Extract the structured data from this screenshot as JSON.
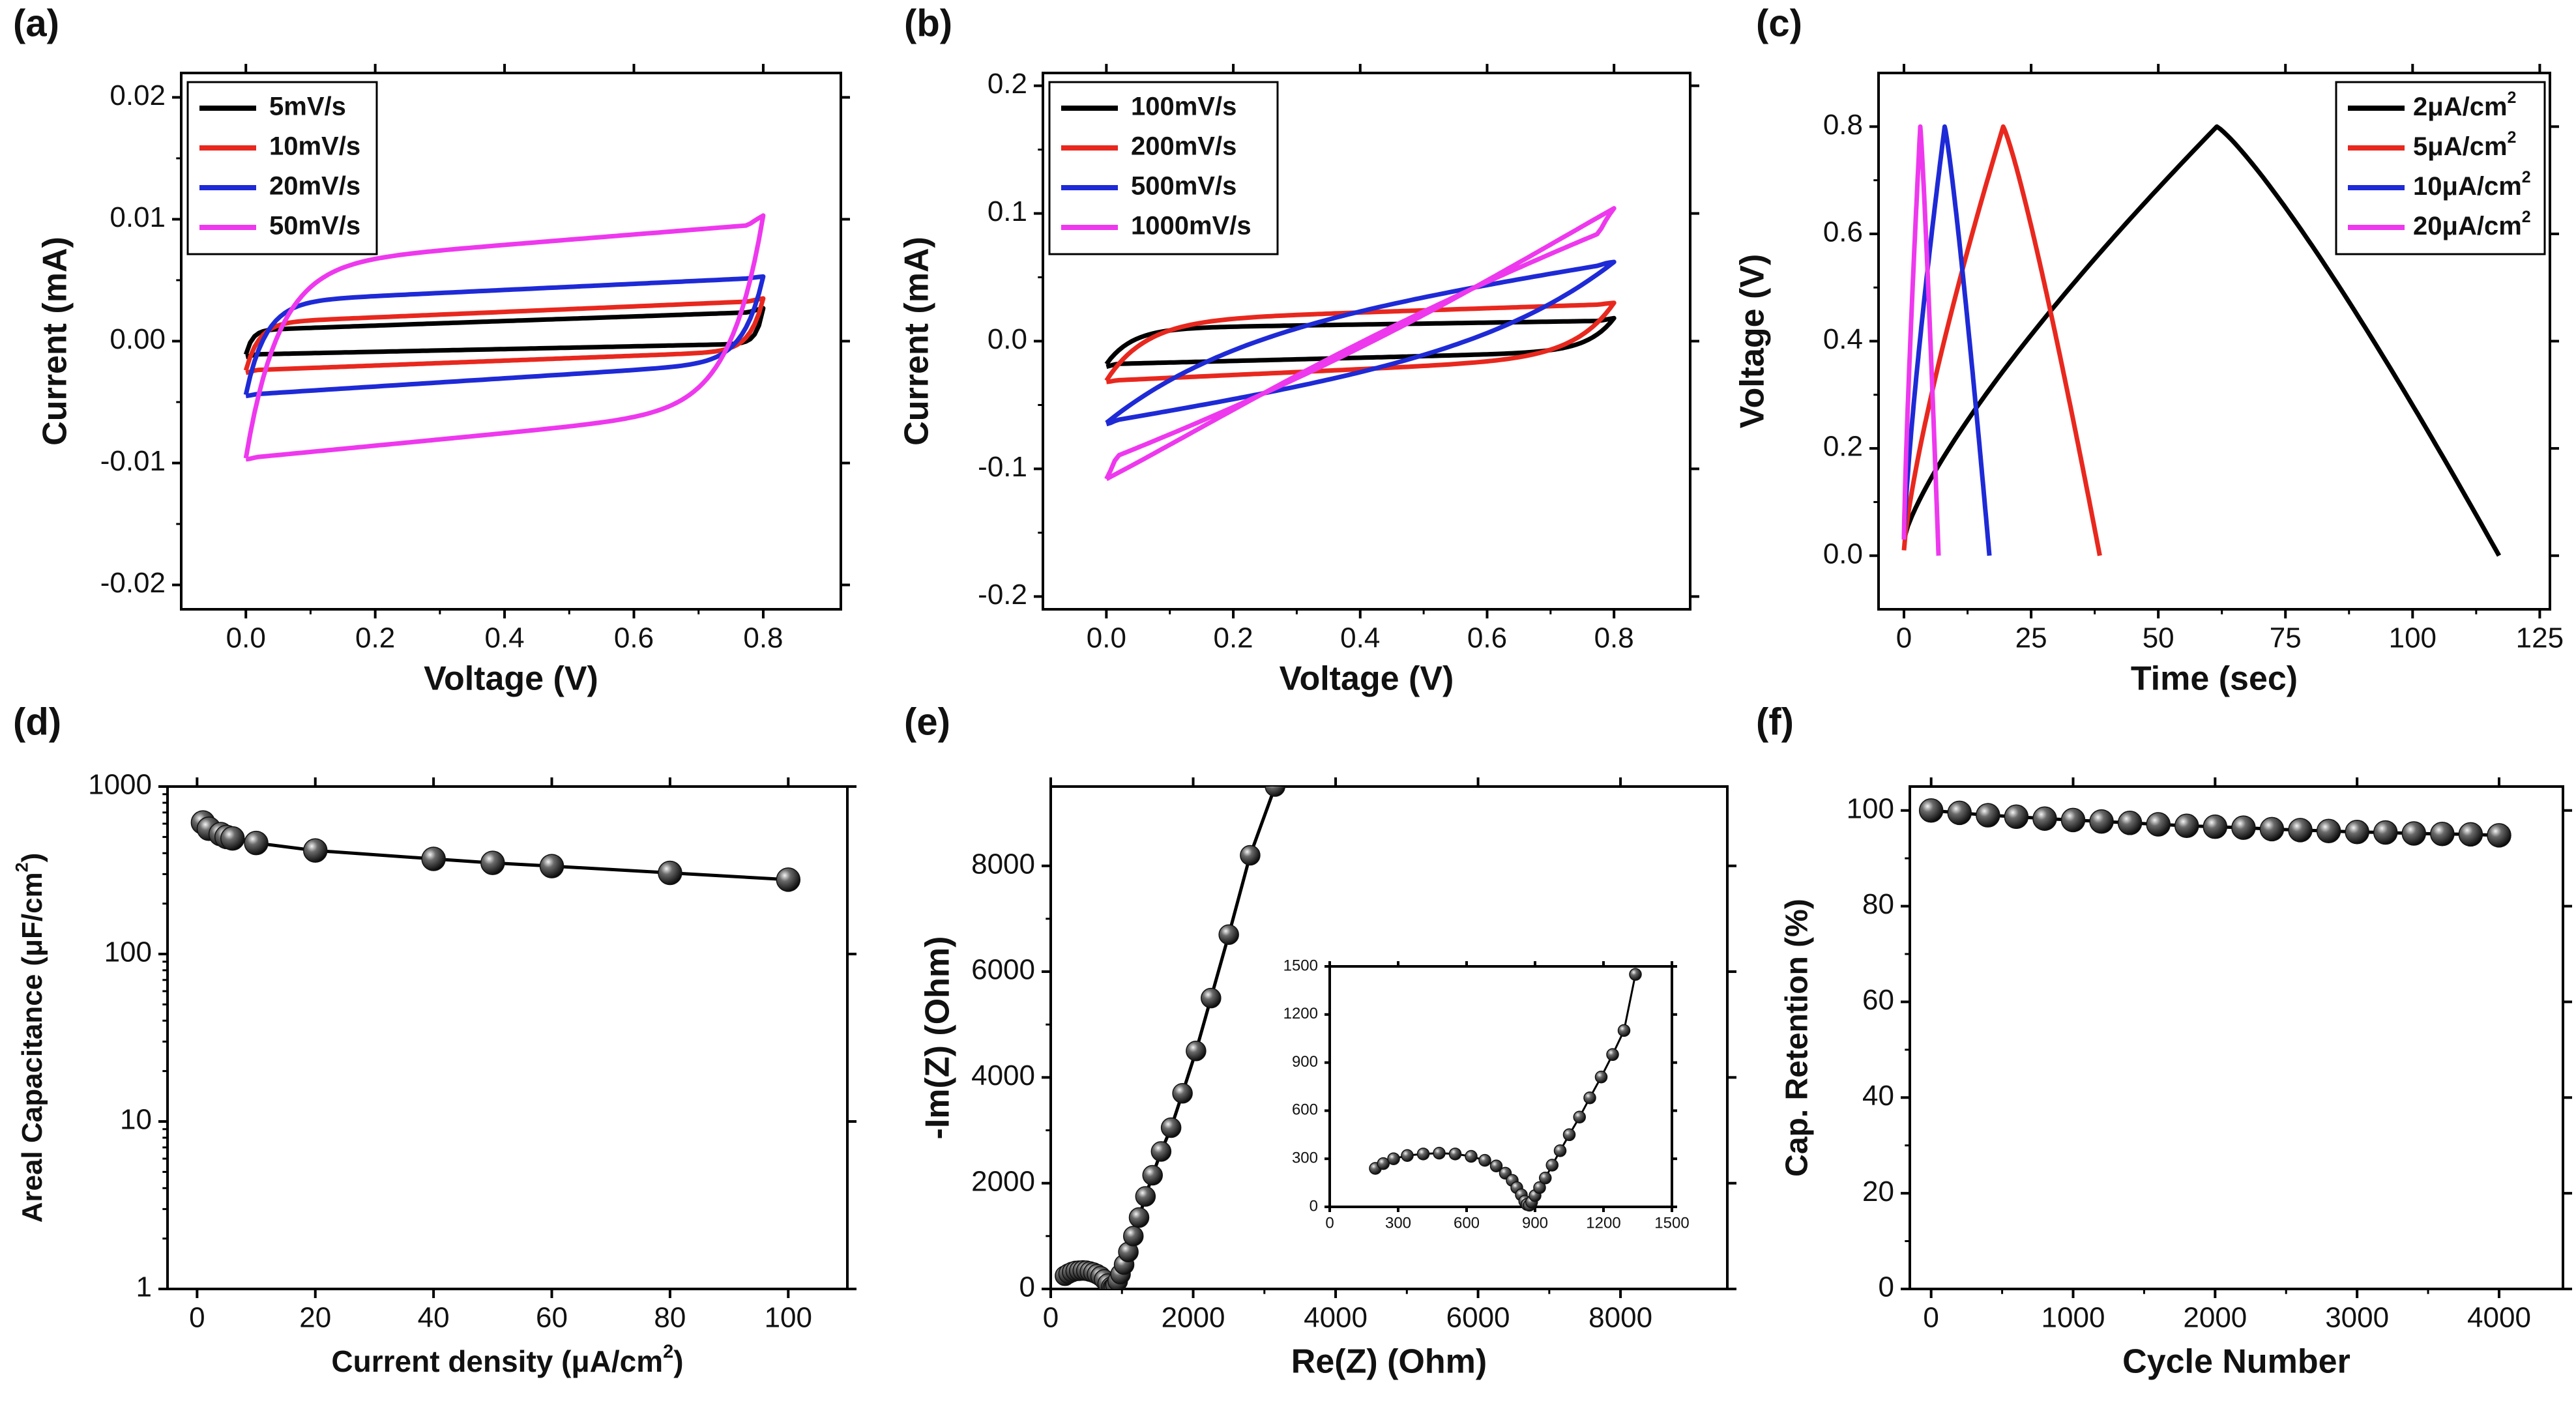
{
  "figure": {
    "colors": {
      "black": "#000000",
      "red": "#e8281e",
      "blue": "#1e2ad6",
      "magenta": "#ee38ee",
      "marker": "#333333"
    }
  },
  "chart_data": [
    {
      "id": "a",
      "panel_label": "(a)",
      "type": "line",
      "xlabel": "Voltage (V)",
      "ylabel": "Current (mA)",
      "xlim": [
        -0.1,
        0.92
      ],
      "ylim": [
        -0.022,
        0.022
      ],
      "xticks": [
        0.0,
        0.2,
        0.4,
        0.6,
        0.8
      ],
      "xtick_labels": [
        "0.0",
        "0.2",
        "0.4",
        "0.6",
        "0.8"
      ],
      "yticks": [
        -0.02,
        -0.01,
        0.0,
        0.01,
        0.02
      ],
      "ytick_labels": [
        "-0.02",
        "-0.01",
        "0.00",
        "0.01",
        "0.02"
      ],
      "legend_position": "top-left",
      "series": [
        {
          "name": "5mV/s",
          "color": "#000000",
          "shape": "cv",
          "params": {
            "V0": 0.8,
            "top0": 0.0009,
            "top1": 0.0024,
            "bot0": -0.0011,
            "bot1": -0.0002,
            "peak": 0.0027,
            "trough": -0.0013,
            "rise": 0.01
          }
        },
        {
          "name": "10mV/s",
          "color": "#e8281e",
          "shape": "cv",
          "params": {
            "V0": 0.8,
            "top0": 0.0015,
            "top1": 0.0033,
            "bot0": -0.0024,
            "bot1": -0.0008,
            "peak": 0.0035,
            "trough": -0.0026,
            "rise": 0.02
          }
        },
        {
          "name": "20mV/s",
          "color": "#1e2ad6",
          "shape": "cv",
          "params": {
            "V0": 0.8,
            "top0": 0.0032,
            "top1": 0.0052,
            "bot0": -0.0044,
            "bot1": -0.0017,
            "peak": 0.0053,
            "trough": -0.0045,
            "rise": 0.03
          }
        },
        {
          "name": "50mV/s",
          "color": "#ee38ee",
          "shape": "cv",
          "params": {
            "V0": 0.8,
            "top0": 0.0062,
            "top1": 0.0096,
            "bot0": -0.0096,
            "bot1": -0.0055,
            "peak": 0.0103,
            "trough": -0.0097,
            "rise": 0.05
          }
        }
      ]
    },
    {
      "id": "b",
      "panel_label": "(b)",
      "type": "line",
      "xlabel": "Voltage (V)",
      "ylabel": "Current (mA)",
      "xlim": [
        -0.1,
        0.92
      ],
      "ylim": [
        -0.21,
        0.21
      ],
      "xticks": [
        0.0,
        0.2,
        0.4,
        0.6,
        0.8
      ],
      "xtick_labels": [
        "0.0",
        "0.2",
        "0.4",
        "0.6",
        "0.8"
      ],
      "yticks": [
        -0.2,
        -0.1,
        0.0,
        0.1,
        0.2
      ],
      "ytick_labels": [
        "-0.2",
        "-0.1",
        "0.0",
        "0.1",
        "0.2"
      ],
      "legend_position": "top-left",
      "series": [
        {
          "name": "100mV/s",
          "color": "#000000",
          "shape": "cv",
          "params": {
            "V0": 0.8,
            "top0": 0.01,
            "top1": 0.016,
            "bot0": -0.018,
            "bot1": -0.008,
            "peak": 0.018,
            "trough": -0.02,
            "rise": 0.04
          }
        },
        {
          "name": "200mV/s",
          "color": "#e8281e",
          "shape": "cv",
          "params": {
            "V0": 0.8,
            "top0": 0.016,
            "top1": 0.029,
            "bot0": -0.031,
            "bot1": -0.013,
            "peak": 0.03,
            "trough": -0.032,
            "rise": 0.06
          }
        },
        {
          "name": "500mV/s",
          "color": "#1e2ad6",
          "shape": "cv",
          "params": {
            "V0": 0.8,
            "top0": 0.0,
            "top1": 0.062,
            "bot0": -0.064,
            "bot1": 0.0,
            "peak": 0.062,
            "trough": -0.065,
            "rise": 0.16
          }
        },
        {
          "name": "1000mV/s",
          "color": "#ee38ee",
          "shape": "cv",
          "params": {
            "V0": 0.8,
            "top0": -0.03,
            "top1": 0.104,
            "bot0": -0.108,
            "bot1": 0.02,
            "peak": 0.104,
            "trough": -0.108,
            "rise": 0.3
          }
        }
      ]
    },
    {
      "id": "c",
      "panel_label": "(c)",
      "type": "line",
      "xlabel": "Time (sec)",
      "ylabel": "Voltage (V)",
      "xlim": [
        -5,
        127
      ],
      "ylim": [
        -0.1,
        0.9
      ],
      "xticks": [
        0,
        25,
        50,
        75,
        100,
        125
      ],
      "xtick_labels": [
        "0",
        "25",
        "50",
        "75",
        "100",
        "125"
      ],
      "yticks": [
        0.0,
        0.2,
        0.4,
        0.6,
        0.8
      ],
      "ytick_labels": [
        "0.0",
        "0.2",
        "0.4",
        "0.6",
        "0.8"
      ],
      "legend_position": "top-right",
      "series": [
        {
          "name": "2μA/cm",
          "sup": "2",
          "color": "#000000",
          "shape": "gcd",
          "params": {
            "tc": 61.5,
            "td": 117,
            "V0": 0.03
          }
        },
        {
          "name": "5μA/cm",
          "sup": "2",
          "color": "#e8281e",
          "shape": "gcd",
          "params": {
            "tc": 19.5,
            "td": 38.5,
            "V0": 0.01
          }
        },
        {
          "name": "10μA/cm",
          "sup": "2",
          "color": "#1e2ad6",
          "shape": "gcd",
          "params": {
            "tc": 8.0,
            "td": 16.8,
            "V0": 0.03
          }
        },
        {
          "name": "20μA/cm",
          "sup": "2",
          "color": "#ee38ee",
          "shape": "gcd",
          "params": {
            "tc": 3.2,
            "td": 6.8,
            "V0": 0.03
          }
        }
      ]
    },
    {
      "id": "d",
      "panel_label": "(d)",
      "type": "scatter",
      "xlabel": "Current density (μA/cm",
      "xlabel_sup": "2",
      "xlabel_end": ")",
      "ylabel": "Areal Capacitance (μF/cm",
      "ylabel_sup": "2",
      "ylabel_end": ")",
      "xlim": [
        -5,
        110
      ],
      "ylim": [
        1,
        1000
      ],
      "yscale": "log",
      "xticks": [
        0,
        20,
        40,
        60,
        80,
        100
      ],
      "xtick_labels": [
        "0",
        "20",
        "40",
        "60",
        "80",
        "100"
      ],
      "yticks": [
        1,
        10,
        100,
        1000
      ],
      "ytick_labels": [
        "1",
        "10",
        "100",
        "1000"
      ],
      "x": [
        1,
        2,
        4,
        5,
        6,
        10,
        20,
        40,
        50,
        60,
        80,
        100
      ],
      "y": [
        610,
        560,
        520,
        500,
        490,
        460,
        415,
        370,
        350,
        335,
        305,
        278
      ]
    },
    {
      "id": "e",
      "panel_label": "(e)",
      "type": "scatter",
      "xlabel": "Re(Z) (Ohm)",
      "ylabel": "-Im(Z) (Ohm)",
      "xlim": [
        0,
        9500
      ],
      "ylim": [
        0,
        9500
      ],
      "xticks": [
        0,
        2000,
        4000,
        6000,
        8000
      ],
      "xtick_labels": [
        "0",
        "2000",
        "4000",
        "6000",
        "8000"
      ],
      "yticks": [
        0,
        2000,
        4000,
        6000,
        8000
      ],
      "ytick_labels": [
        "0",
        "2000",
        "4000",
        "6000",
        "8000"
      ],
      "x": [
        200,
        250,
        300,
        350,
        400,
        450,
        500,
        550,
        600,
        650,
        700,
        750,
        800,
        850,
        870,
        890,
        910,
        940,
        980,
        1030,
        1090,
        1160,
        1240,
        1330,
        1430,
        1550,
        1690,
        1850,
        2040,
        2250,
        2500,
        2800,
        3150
      ],
      "y": [
        250,
        290,
        320,
        340,
        345,
        350,
        345,
        330,
        310,
        280,
        240,
        180,
        100,
        40,
        20,
        30,
        70,
        150,
        280,
        460,
        700,
        1000,
        1350,
        1750,
        2150,
        2600,
        3050,
        3700,
        4500,
        5500,
        6700,
        8200,
        9500
      ],
      "inset": {
        "xlim": [
          0,
          1500
        ],
        "ylim": [
          0,
          1500
        ],
        "xticks": [
          0,
          300,
          600,
          900,
          1200,
          1500
        ],
        "xtick_labels": [
          "0",
          "300",
          "600",
          "900",
          "1200",
          "1500"
        ],
        "yticks": [
          0,
          300,
          600,
          900,
          1200,
          1500
        ],
        "ytick_labels": [
          "0",
          "300",
          "600",
          "900",
          "1200",
          "1500"
        ],
        "x": [
          200,
          235,
          280,
          340,
          410,
          480,
          550,
          620,
          680,
          730,
          770,
          800,
          820,
          840,
          855,
          865,
          875,
          885,
          900,
          920,
          945,
          975,
          1010,
          1050,
          1095,
          1140,
          1190,
          1240,
          1290,
          1340
        ],
        "y": [
          240,
          270,
          300,
          320,
          330,
          335,
          330,
          315,
          290,
          255,
          210,
          165,
          120,
          75,
          35,
          15,
          10,
          30,
          70,
          120,
          180,
          260,
          350,
          450,
          560,
          680,
          810,
          950,
          1100,
          1450
        ]
      }
    },
    {
      "id": "f",
      "panel_label": "(f)",
      "type": "scatter",
      "xlabel": "Cycle Number",
      "ylabel": "Cap. Retention (%)",
      "xlim": [
        -150,
        4450
      ],
      "ylim": [
        0,
        105
      ],
      "xticks": [
        0,
        1000,
        2000,
        3000,
        4000
      ],
      "xtick_labels": [
        "0",
        "1000",
        "2000",
        "3000",
        "4000"
      ],
      "yticks": [
        0,
        20,
        40,
        60,
        80,
        100
      ],
      "ytick_labels": [
        "0",
        "20",
        "40",
        "60",
        "80",
        "100"
      ],
      "x": [
        0,
        200,
        400,
        600,
        800,
        1000,
        1200,
        1400,
        1600,
        1800,
        2000,
        2200,
        2400,
        2600,
        2800,
        3000,
        3200,
        3400,
        3600,
        3800,
        4000
      ],
      "y": [
        100,
        99.5,
        99,
        98.7,
        98.3,
        98,
        97.7,
        97.4,
        97.1,
        96.8,
        96.6,
        96.4,
        96.1,
        95.9,
        95.7,
        95.5,
        95.4,
        95.2,
        95.1,
        95.0,
        94.8
      ]
    }
  ]
}
